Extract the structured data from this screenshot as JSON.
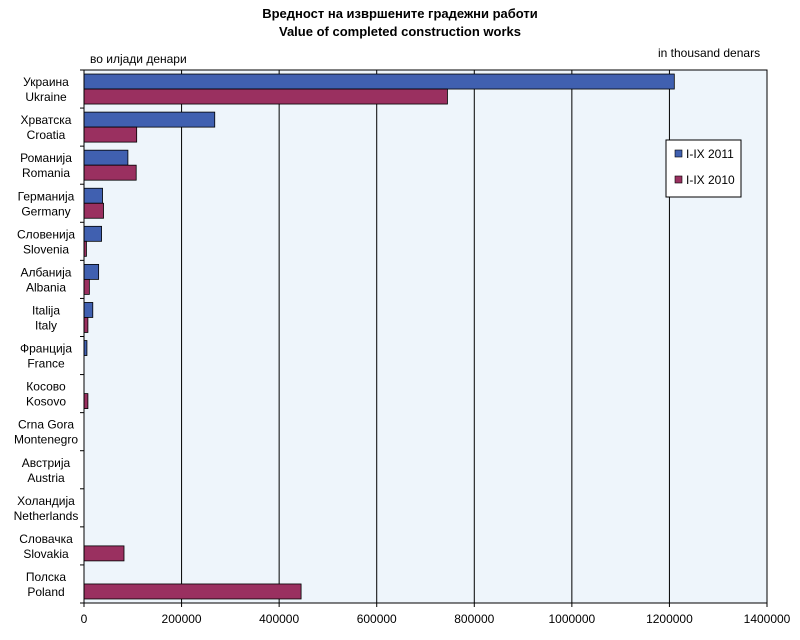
{
  "chart_data": {
    "type": "bar",
    "orientation": "horizontal",
    "title": "Вредност на извршените градежни работи",
    "subtitle": "Value of completed construction works",
    "unit_left": "во илјади денари",
    "unit_right": "in thousand denars",
    "categories": [
      {
        "mk": "Украина",
        "en": "Ukraine"
      },
      {
        "mk": "Хрватска",
        "en": "Croatia"
      },
      {
        "mk": "Романија",
        "en": "Romania"
      },
      {
        "mk": "Германија",
        "en": "Germany"
      },
      {
        "mk": "Словенија",
        "en": "Slovenia"
      },
      {
        "mk": "Албанија",
        "en": "Albania"
      },
      {
        "mk": "Italija",
        "en": "Italy"
      },
      {
        "mk": "Франција",
        "en": "France"
      },
      {
        "mk": "Косово",
        "en": "Kosovo"
      },
      {
        "mk": "Crna Gora",
        "en": "Montenegro"
      },
      {
        "mk": "Австрија",
        "en": "Austria"
      },
      {
        "mk": "Холандија",
        "en": "Netherlands"
      },
      {
        "mk": "Словачка",
        "en": "Slovakia"
      },
      {
        "mk": "Полска",
        "en": "Poland"
      }
    ],
    "series": [
      {
        "name": "I-IX 2011",
        "color": "#4060b0",
        "values": [
          1210000,
          268000,
          90000,
          38000,
          36000,
          30000,
          18000,
          6000,
          0,
          0,
          0,
          0,
          0,
          0
        ]
      },
      {
        "name": "I-IX 2010",
        "color": "#9a3060",
        "values": [
          745000,
          108000,
          107000,
          40000,
          5000,
          11000,
          8000,
          0,
          8000,
          0,
          0,
          0,
          82000,
          445000
        ]
      }
    ],
    "xlim": [
      0,
      1400000
    ],
    "xticks": [
      0,
      200000,
      400000,
      600000,
      800000,
      1000000,
      1200000,
      1400000
    ],
    "xtick_labels": [
      "0",
      "200000",
      "400000",
      "600000",
      "800000",
      "1000000",
      "1200000",
      "1400000"
    ],
    "grid": true,
    "plot_background": "#eef5fb",
    "legend_position": "right"
  }
}
